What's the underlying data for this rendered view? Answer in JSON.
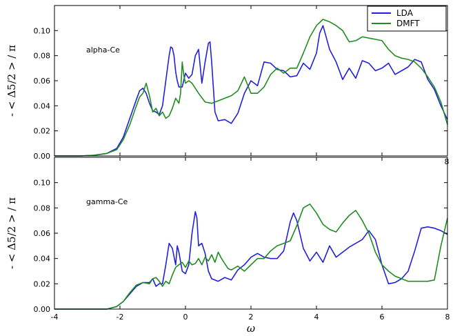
{
  "chart_data": [
    {
      "type": "line",
      "annotation": "alpha-Ce",
      "ylabel": "- < Δ5/2 > / π",
      "xlabel": "",
      "xlim": [
        -4,
        8
      ],
      "ylim": [
        0,
        0.12
      ],
      "xticks": [
        -4,
        -2,
        0,
        2,
        4,
        6,
        8
      ],
      "yticks": [
        "0.00",
        "0.02",
        "0.04",
        "0.06",
        "0.08",
        "0.10"
      ],
      "yticks_values": [
        0,
        0.02,
        0.04,
        0.06,
        0.08,
        0.1
      ],
      "visible_xtick_labels": [
        "8"
      ],
      "legend": {
        "placement": "top-right",
        "entries": [
          "LDA",
          "DMFT"
        ]
      },
      "series": [
        {
          "name": "LDA",
          "color": "#1f1fdd",
          "x": [
            -3.2,
            -2.8,
            -2.4,
            -2.1,
            -1.9,
            -1.7,
            -1.5,
            -1.4,
            -1.3,
            -1.2,
            -1.1,
            -1.0,
            -0.9,
            -0.8,
            -0.7,
            -0.6,
            -0.5,
            -0.45,
            -0.4,
            -0.35,
            -0.3,
            -0.25,
            -0.2,
            -0.1,
            0.0,
            0.1,
            0.2,
            0.3,
            0.4,
            0.5,
            0.6,
            0.7,
            0.75,
            0.8,
            0.9,
            1.0,
            1.2,
            1.4,
            1.6,
            1.8,
            2.0,
            2.2,
            2.4,
            2.6,
            2.8,
            3.0,
            3.2,
            3.4,
            3.6,
            3.8,
            4.0,
            4.1,
            4.2,
            4.4,
            4.6,
            4.8,
            5.0,
            5.2,
            5.4,
            5.6,
            5.8,
            6.0,
            6.2,
            6.4,
            6.6,
            6.8,
            7.0,
            7.2,
            7.4,
            7.6,
            7.8,
            8.0
          ],
          "y": [
            0.0,
            0.0005,
            0.002,
            0.006,
            0.015,
            0.03,
            0.045,
            0.052,
            0.054,
            0.05,
            0.042,
            0.036,
            0.035,
            0.033,
            0.04,
            0.06,
            0.08,
            0.087,
            0.086,
            0.08,
            0.067,
            0.06,
            0.055,
            0.055,
            0.066,
            0.062,
            0.065,
            0.08,
            0.085,
            0.058,
            0.075,
            0.09,
            0.091,
            0.075,
            0.035,
            0.028,
            0.029,
            0.026,
            0.034,
            0.05,
            0.06,
            0.056,
            0.075,
            0.074,
            0.069,
            0.068,
            0.063,
            0.064,
            0.074,
            0.069,
            0.082,
            0.098,
            0.104,
            0.085,
            0.075,
            0.061,
            0.07,
            0.062,
            0.076,
            0.074,
            0.068,
            0.07,
            0.074,
            0.065,
            0.068,
            0.071,
            0.077,
            0.075,
            0.061,
            0.053,
            0.04,
            0.029
          ]
        },
        {
          "name": "DMFT",
          "color": "#1f8c1f",
          "x": [
            -3.2,
            -2.8,
            -2.4,
            -2.1,
            -1.9,
            -1.7,
            -1.5,
            -1.4,
            -1.3,
            -1.2,
            -1.1,
            -1.0,
            -0.9,
            -0.8,
            -0.7,
            -0.6,
            -0.5,
            -0.4,
            -0.3,
            -0.2,
            -0.15,
            -0.1,
            -0.05,
            0.0,
            0.1,
            0.2,
            0.4,
            0.6,
            0.8,
            1.0,
            1.2,
            1.4,
            1.6,
            1.8,
            2.0,
            2.2,
            2.4,
            2.6,
            2.8,
            3.0,
            3.2,
            3.4,
            3.6,
            3.8,
            4.0,
            4.2,
            4.4,
            4.6,
            4.8,
            5.0,
            5.2,
            5.4,
            5.6,
            5.8,
            6.0,
            6.2,
            6.4,
            6.6,
            6.8,
            7.0,
            7.2,
            7.4,
            7.6,
            7.8,
            8.0
          ],
          "y": [
            0.0,
            0.0005,
            0.002,
            0.005,
            0.013,
            0.025,
            0.04,
            0.047,
            0.05,
            0.058,
            0.048,
            0.035,
            0.038,
            0.032,
            0.035,
            0.03,
            0.032,
            0.038,
            0.046,
            0.042,
            0.05,
            0.075,
            0.064,
            0.058,
            0.06,
            0.058,
            0.05,
            0.043,
            0.042,
            0.044,
            0.046,
            0.048,
            0.052,
            0.063,
            0.05,
            0.05,
            0.055,
            0.065,
            0.07,
            0.066,
            0.07,
            0.07,
            0.082,
            0.095,
            0.104,
            0.109,
            0.107,
            0.104,
            0.1,
            0.091,
            0.092,
            0.095,
            0.094,
            0.093,
            0.092,
            0.085,
            0.08,
            0.078,
            0.077,
            0.075,
            0.07,
            0.063,
            0.055,
            0.043,
            0.025
          ]
        }
      ]
    },
    {
      "type": "line",
      "annotation": "gamma-Ce",
      "ylabel": "- < Δ5/2 > / π",
      "xlabel": "ω",
      "xlim": [
        -4,
        8
      ],
      "ylim": [
        0,
        0.12
      ],
      "xticks": [
        -4,
        -2,
        0,
        2,
        4,
        6,
        8
      ],
      "yticks": [
        "0.00",
        "0.02",
        "0.04",
        "0.06",
        "0.08",
        "0.10"
      ],
      "yticks_values": [
        0,
        0.02,
        0.04,
        0.06,
        0.08,
        0.1
      ],
      "visible_xtick_labels": [
        "-4",
        "-2",
        "0",
        "2",
        "4",
        "6",
        "8"
      ],
      "series": [
        {
          "name": "LDA",
          "color": "#1f1fdd",
          "x": [
            -2.4,
            -2.1,
            -1.9,
            -1.7,
            -1.5,
            -1.3,
            -1.1,
            -1.0,
            -0.9,
            -0.8,
            -0.7,
            -0.6,
            -0.5,
            -0.4,
            -0.3,
            -0.25,
            -0.2,
            -0.1,
            0.0,
            0.1,
            0.2,
            0.3,
            0.35,
            0.4,
            0.5,
            0.6,
            0.7,
            0.8,
            1.0,
            1.2,
            1.4,
            1.6,
            1.8,
            2.0,
            2.2,
            2.4,
            2.6,
            2.8,
            3.0,
            3.2,
            3.3,
            3.4,
            3.6,
            3.8,
            4.0,
            4.2,
            4.4,
            4.6,
            4.8,
            5.0,
            5.2,
            5.4,
            5.6,
            5.8,
            6.0,
            6.2,
            6.4,
            6.6,
            6.8,
            7.0,
            7.2,
            7.4,
            7.6,
            7.8,
            8.0
          ],
          "y": [
            0.0,
            0.002,
            0.006,
            0.012,
            0.018,
            0.021,
            0.021,
            0.024,
            0.018,
            0.02,
            0.02,
            0.035,
            0.052,
            0.048,
            0.035,
            0.05,
            0.045,
            0.03,
            0.028,
            0.035,
            0.06,
            0.077,
            0.072,
            0.05,
            0.052,
            0.044,
            0.03,
            0.024,
            0.022,
            0.025,
            0.023,
            0.031,
            0.035,
            0.041,
            0.044,
            0.041,
            0.04,
            0.04,
            0.046,
            0.069,
            0.076,
            0.07,
            0.048,
            0.038,
            0.045,
            0.037,
            0.05,
            0.041,
            0.045,
            0.049,
            0.052,
            0.055,
            0.062,
            0.055,
            0.035,
            0.02,
            0.021,
            0.024,
            0.03,
            0.046,
            0.064,
            0.065,
            0.064,
            0.062,
            0.059
          ]
        },
        {
          "name": "DMFT",
          "color": "#1f8c1f",
          "x": [
            -2.4,
            -2.1,
            -1.9,
            -1.7,
            -1.5,
            -1.3,
            -1.1,
            -1.0,
            -0.9,
            -0.8,
            -0.7,
            -0.6,
            -0.5,
            -0.4,
            -0.3,
            -0.2,
            -0.1,
            0.0,
            0.1,
            0.2,
            0.3,
            0.4,
            0.5,
            0.6,
            0.7,
            0.8,
            0.9,
            1.0,
            1.1,
            1.2,
            1.3,
            1.4,
            1.6,
            1.8,
            2.0,
            2.2,
            2.4,
            2.6,
            2.8,
            3.0,
            3.2,
            3.4,
            3.6,
            3.8,
            4.0,
            4.2,
            4.4,
            4.6,
            4.8,
            5.0,
            5.2,
            5.4,
            5.6,
            5.8,
            6.0,
            6.2,
            6.4,
            6.6,
            6.8,
            7.0,
            7.2,
            7.4,
            7.6,
            7.8,
            8.0
          ],
          "y": [
            0.0,
            0.002,
            0.006,
            0.013,
            0.019,
            0.021,
            0.02,
            0.024,
            0.025,
            0.022,
            0.018,
            0.022,
            0.02,
            0.027,
            0.033,
            0.035,
            0.037,
            0.033,
            0.038,
            0.035,
            0.036,
            0.04,
            0.035,
            0.041,
            0.038,
            0.043,
            0.037,
            0.045,
            0.04,
            0.036,
            0.032,
            0.031,
            0.034,
            0.03,
            0.035,
            0.04,
            0.04,
            0.046,
            0.05,
            0.052,
            0.054,
            0.066,
            0.08,
            0.083,
            0.076,
            0.067,
            0.063,
            0.061,
            0.068,
            0.074,
            0.078,
            0.07,
            0.06,
            0.045,
            0.035,
            0.03,
            0.026,
            0.024,
            0.022,
            0.022,
            0.022,
            0.022,
            0.023,
            0.05,
            0.072
          ]
        }
      ]
    }
  ]
}
